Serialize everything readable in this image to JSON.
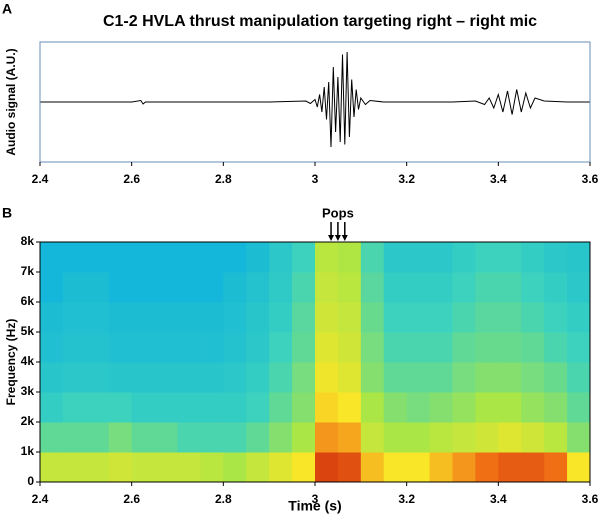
{
  "chart_data": [
    {
      "type": "line",
      "panel_label": "A",
      "title": "C1-2 HVLA thrust manipulation targeting right – right mic",
      "ylabel": "Audio signal (A.U.)",
      "color": "#000000",
      "x": [
        2.4,
        2.5,
        2.6,
        2.62,
        2.625,
        2.63,
        2.7,
        2.8,
        2.9,
        2.98,
        2.99,
        3.0,
        3.005,
        3.01,
        3.015,
        3.02,
        3.025,
        3.03,
        3.035,
        3.04,
        3.045,
        3.05,
        3.055,
        3.06,
        3.065,
        3.07,
        3.075,
        3.08,
        3.085,
        3.09,
        3.095,
        3.1,
        3.11,
        3.12,
        3.15,
        3.2,
        3.3,
        3.35,
        3.37,
        3.38,
        3.39,
        3.4,
        3.41,
        3.42,
        3.43,
        3.44,
        3.45,
        3.46,
        3.47,
        3.48,
        3.5,
        3.55,
        3.6
      ],
      "values": [
        0,
        0,
        0,
        0.03,
        -0.04,
        0,
        0,
        0,
        0,
        0.02,
        -0.03,
        0.05,
        -0.1,
        0.15,
        -0.2,
        0.3,
        -0.35,
        0.4,
        -0.9,
        0.7,
        -0.6,
        0.5,
        -0.8,
        0.95,
        -0.85,
        1.0,
        -0.7,
        0.45,
        -0.3,
        0.25,
        -0.15,
        0.08,
        -0.05,
        0.03,
        0,
        0,
        0,
        0.02,
        -0.05,
        0.08,
        -0.12,
        0.15,
        -0.2,
        0.22,
        -0.25,
        0.25,
        -0.2,
        0.18,
        -0.12,
        0.08,
        0.02,
        0,
        0
      ],
      "xlim": [
        2.4,
        3.6
      ],
      "xticks": [
        2.4,
        2.6,
        2.8,
        3,
        3.2,
        3.4,
        3.6
      ],
      "ylim": [
        -1.2,
        1.2
      ]
    },
    {
      "type": "heatmap",
      "panel_label": "B",
      "xlabel": "Time (s)",
      "ylabel": "Frequency (Hz)",
      "annotation": {
        "text": "Pops",
        "x": [
          3.035,
          3.05,
          3.065
        ]
      },
      "xbins": [
        2.4,
        2.45,
        2.5,
        2.55,
        2.6,
        2.65,
        2.7,
        2.75,
        2.8,
        2.85,
        2.9,
        2.95,
        3.0,
        3.05,
        3.1,
        3.15,
        3.2,
        3.25,
        3.3,
        3.35,
        3.4,
        3.45,
        3.5,
        3.55,
        3.6
      ],
      "ybins": [
        0,
        1000,
        2000,
        3000,
        4000,
        5000,
        6000,
        7000,
        8000
      ],
      "z": [
        [
          0.6,
          0.6,
          0.6,
          0.62,
          0.6,
          0.6,
          0.6,
          0.58,
          0.55,
          0.6,
          0.65,
          0.7,
          0.92,
          0.9,
          0.75,
          0.7,
          0.7,
          0.75,
          0.8,
          0.85,
          0.88,
          0.88,
          0.85,
          0.7
        ],
        [
          0.45,
          0.45,
          0.45,
          0.48,
          0.45,
          0.45,
          0.42,
          0.42,
          0.42,
          0.45,
          0.5,
          0.55,
          0.8,
          0.78,
          0.6,
          0.55,
          0.55,
          0.58,
          0.6,
          0.62,
          0.65,
          0.62,
          0.58,
          0.5
        ],
        [
          0.38,
          0.4,
          0.4,
          0.4,
          0.38,
          0.38,
          0.38,
          0.38,
          0.38,
          0.4,
          0.45,
          0.5,
          0.72,
          0.7,
          0.55,
          0.5,
          0.48,
          0.5,
          0.52,
          0.55,
          0.55,
          0.52,
          0.5,
          0.45
        ],
        [
          0.35,
          0.36,
          0.36,
          0.35,
          0.35,
          0.35,
          0.35,
          0.35,
          0.36,
          0.38,
          0.42,
          0.48,
          0.68,
          0.65,
          0.5,
          0.45,
          0.45,
          0.45,
          0.48,
          0.5,
          0.5,
          0.48,
          0.46,
          0.42
        ],
        [
          0.33,
          0.34,
          0.34,
          0.33,
          0.33,
          0.33,
          0.33,
          0.33,
          0.34,
          0.36,
          0.4,
          0.45,
          0.65,
          0.62,
          0.48,
          0.42,
          0.42,
          0.42,
          0.45,
          0.46,
          0.46,
          0.45,
          0.42,
          0.4
        ],
        [
          0.32,
          0.33,
          0.33,
          0.32,
          0.32,
          0.32,
          0.32,
          0.32,
          0.33,
          0.35,
          0.38,
          0.44,
          0.62,
          0.6,
          0.46,
          0.4,
          0.4,
          0.4,
          0.42,
          0.44,
          0.44,
          0.42,
          0.4,
          0.38
        ],
        [
          0.3,
          0.32,
          0.32,
          0.3,
          0.3,
          0.3,
          0.3,
          0.3,
          0.32,
          0.34,
          0.37,
          0.42,
          0.6,
          0.58,
          0.44,
          0.38,
          0.38,
          0.38,
          0.4,
          0.42,
          0.42,
          0.4,
          0.38,
          0.36
        ],
        [
          0.3,
          0.3,
          0.3,
          0.3,
          0.3,
          0.3,
          0.3,
          0.3,
          0.3,
          0.32,
          0.36,
          0.4,
          0.58,
          0.56,
          0.42,
          0.36,
          0.36,
          0.36,
          0.38,
          0.4,
          0.4,
          0.38,
          0.36,
          0.35
        ]
      ],
      "xlim": [
        2.4,
        3.6
      ],
      "xticks": [
        2.4,
        2.6,
        2.8,
        3,
        3.2,
        3.4,
        3.6
      ],
      "ylim": [
        0,
        8000
      ],
      "yticks": [
        0,
        {
          "value": 1000,
          "label": "1k"
        },
        {
          "value": 2000,
          "label": "2k"
        },
        {
          "value": 3000,
          "label": "3k"
        },
        {
          "value": 4000,
          "label": "4k"
        },
        {
          "value": 5000,
          "label": "5k"
        },
        {
          "value": 6000,
          "label": "6k"
        },
        {
          "value": 7000,
          "label": "7k"
        },
        {
          "value": 8000,
          "label": "8k"
        }
      ]
    }
  ]
}
